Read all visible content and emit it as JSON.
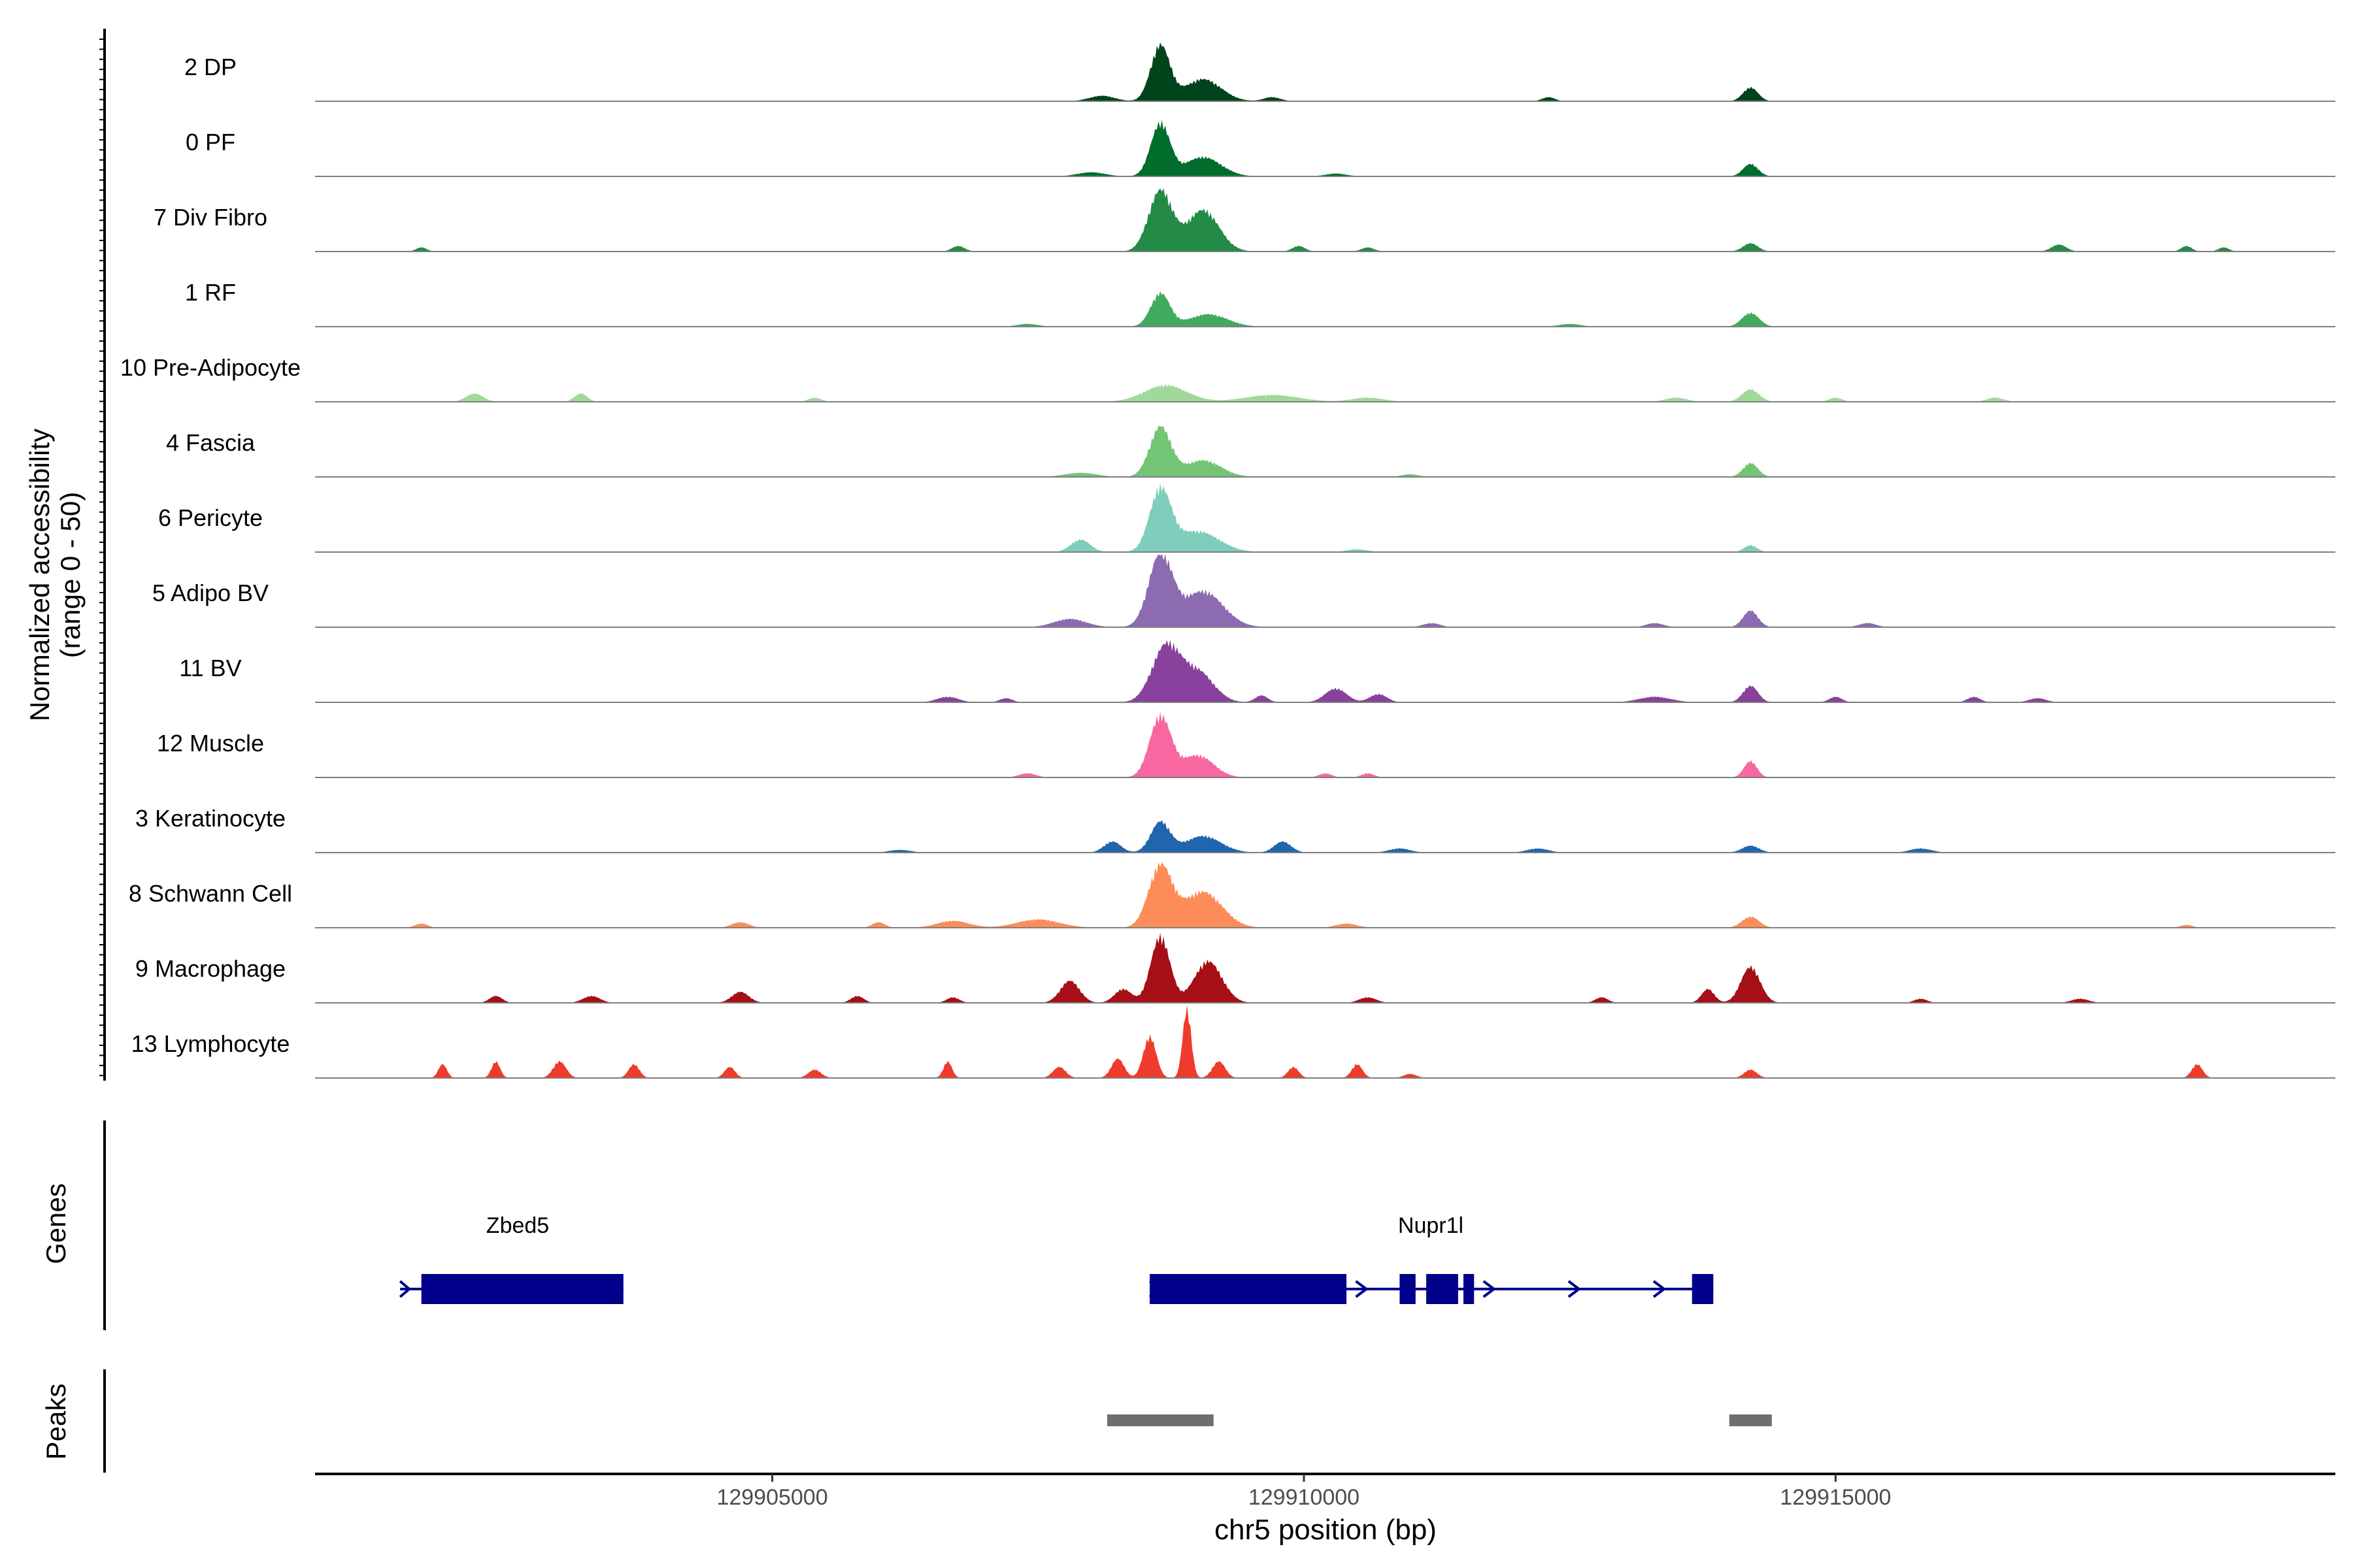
{
  "chart_data": {
    "type": "area",
    "subtype": "coverage-tracks",
    "xlabel": "chr5 position (bp)",
    "ylabel_line1": "Normalized accessibility",
    "ylabel_line2": "(range 0 - 50)",
    "ylim": [
      0,
      50
    ],
    "xlim": [
      129900700,
      129919700
    ],
    "xticks": [
      129905000,
      129910000,
      129915000
    ],
    "xtick_labels": [
      "129905000",
      "129910000",
      "129915000"
    ],
    "grid": false,
    "track_label_genes": "Genes",
    "track_label_peaks": "Peaks",
    "series": [
      {
        "name": "2 DP",
        "color": "#00441b",
        "peaks": [
          [
            129908650,
            40,
            90
          ],
          [
            129909050,
            16,
            170
          ],
          [
            129914200,
            10,
            70
          ],
          [
            129908100,
            4,
            120
          ],
          [
            129912300,
            3,
            60
          ],
          [
            129909700,
            3,
            80
          ]
        ]
      },
      {
        "name": "0 PF",
        "color": "#006d2c",
        "peaks": [
          [
            129908650,
            38,
            90
          ],
          [
            129909050,
            14,
            170
          ],
          [
            129914200,
            9,
            70
          ],
          [
            129908000,
            3,
            130
          ],
          [
            129910300,
            2,
            100
          ]
        ]
      },
      {
        "name": "7 Div Fibro",
        "color": "#238b45",
        "peaks": [
          [
            129908650,
            44,
            110
          ],
          [
            129909050,
            30,
            150
          ],
          [
            129914200,
            6,
            70
          ],
          [
            129901700,
            3,
            50
          ],
          [
            129906750,
            4,
            60
          ],
          [
            129909950,
            4,
            60
          ],
          [
            129910600,
            3,
            60
          ],
          [
            129917100,
            5,
            70
          ],
          [
            129918300,
            4,
            50
          ],
          [
            129918650,
            3,
            50
          ]
        ]
      },
      {
        "name": "1 RF",
        "color": "#41ab5d",
        "peaks": [
          [
            129908650,
            24,
            90
          ],
          [
            129909100,
            9,
            180
          ],
          [
            129914200,
            10,
            80
          ],
          [
            129907400,
            2,
            100
          ],
          [
            129912500,
            2,
            100
          ]
        ]
      },
      {
        "name": "10 Pre-Adipocyte",
        "color": "#a1d99b",
        "peaks": [
          [
            129908700,
            12,
            200
          ],
          [
            129902200,
            6,
            80
          ],
          [
            129903200,
            6,
            60
          ],
          [
            129914200,
            9,
            80
          ],
          [
            129909700,
            5,
            250
          ],
          [
            129910600,
            3,
            150
          ],
          [
            129913500,
            3,
            100
          ],
          [
            129915000,
            3,
            60
          ],
          [
            129916500,
            3,
            80
          ],
          [
            129905400,
            3,
            60
          ]
        ]
      },
      {
        "name": "4 Fascia",
        "color": "#74c476",
        "peaks": [
          [
            129908650,
            36,
            100
          ],
          [
            129909050,
            12,
            170
          ],
          [
            129914200,
            10,
            70
          ],
          [
            129907900,
            3,
            150
          ],
          [
            129911000,
            2,
            80
          ]
        ]
      },
      {
        "name": "6 Pericyte",
        "color": "#7fcdbb",
        "peaks": [
          [
            129908650,
            44,
            100
          ],
          [
            129909000,
            15,
            200
          ],
          [
            129907900,
            9,
            90
          ],
          [
            129914200,
            5,
            60
          ],
          [
            129910500,
            2,
            100
          ]
        ]
      },
      {
        "name": "5 Adipo BV",
        "color": "#8c6bb1",
        "peaks": [
          [
            129908650,
            52,
            110
          ],
          [
            129909050,
            26,
            190
          ],
          [
            129914200,
            12,
            70
          ],
          [
            129907800,
            6,
            150
          ],
          [
            129911200,
            3,
            80
          ],
          [
            129915300,
            3,
            80
          ],
          [
            129913300,
            3,
            80
          ]
        ]
      },
      {
        "name": "11 BV",
        "color": "#88419d",
        "peaks": [
          [
            129908700,
            40,
            130
          ],
          [
            129909000,
            22,
            150
          ],
          [
            129914200,
            12,
            70
          ],
          [
            129906650,
            4,
            100
          ],
          [
            129907200,
            3,
            60
          ],
          [
            129910300,
            10,
            100
          ],
          [
            129910700,
            6,
            80
          ],
          [
            129913300,
            4,
            150
          ],
          [
            129915000,
            4,
            60
          ],
          [
            129916300,
            4,
            60
          ],
          [
            129916900,
            3,
            80
          ],
          [
            129909600,
            5,
            60
          ]
        ]
      },
      {
        "name": "12 Muscle",
        "color": "#f768a1",
        "peaks": [
          [
            129908650,
            44,
            100
          ],
          [
            129909000,
            16,
            150
          ],
          [
            129914200,
            12,
            60
          ],
          [
            129907400,
            3,
            80
          ],
          [
            129910200,
            3,
            60
          ],
          [
            129910600,
            3,
            60
          ]
        ]
      },
      {
        "name": "3 Keratinocyte",
        "color": "#2166ac",
        "peaks": [
          [
            129908650,
            22,
            90
          ],
          [
            129909050,
            12,
            170
          ],
          [
            129908200,
            8,
            80
          ],
          [
            129909800,
            8,
            80
          ],
          [
            129914200,
            5,
            80
          ],
          [
            129910900,
            3,
            100
          ],
          [
            129912200,
            3,
            100
          ],
          [
            129915800,
            3,
            100
          ],
          [
            129906200,
            2,
            100
          ]
        ]
      },
      {
        "name": "8 Schwann Cell",
        "color": "#fc8d59",
        "peaks": [
          [
            129908650,
            44,
            110
          ],
          [
            129909050,
            26,
            180
          ],
          [
            129907500,
            6,
            200
          ],
          [
            129906700,
            5,
            150
          ],
          [
            129914200,
            8,
            80
          ],
          [
            129901700,
            3,
            60
          ],
          [
            129904700,
            4,
            80
          ],
          [
            129906000,
            4,
            60
          ],
          [
            129910400,
            3,
            100
          ],
          [
            129918300,
            2,
            60
          ]
        ]
      },
      {
        "name": "9 Macrophage",
        "color": "#a50f15",
        "peaks": [
          [
            129908650,
            48,
            90
          ],
          [
            129909100,
            30,
            130
          ],
          [
            129914200,
            26,
            90
          ],
          [
            129907800,
            16,
            90
          ],
          [
            129908300,
            10,
            80
          ],
          [
            129913800,
            10,
            60
          ],
          [
            129904700,
            8,
            80
          ],
          [
            129903300,
            5,
            80
          ],
          [
            129902400,
            5,
            60
          ],
          [
            129905800,
            5,
            60
          ],
          [
            129906700,
            4,
            60
          ],
          [
            129910600,
            4,
            80
          ],
          [
            129912800,
            4,
            60
          ],
          [
            129915800,
            3,
            60
          ],
          [
            129917300,
            3,
            80
          ]
        ]
      },
      {
        "name": "13 Lymphocyte",
        "color": "#ef3b2c",
        "peaks": [
          [
            129908900,
            50,
            40
          ],
          [
            129908550,
            30,
            60
          ],
          [
            129908250,
            14,
            60
          ],
          [
            129909200,
            12,
            60
          ],
          [
            129901900,
            10,
            40
          ],
          [
            129902400,
            12,
            40
          ],
          [
            129903000,
            12,
            60
          ],
          [
            129903700,
            10,
            50
          ],
          [
            129904600,
            8,
            50
          ],
          [
            129905400,
            6,
            60
          ],
          [
            129906650,
            12,
            40
          ],
          [
            129907700,
            8,
            60
          ],
          [
            129909900,
            8,
            50
          ],
          [
            129910500,
            10,
            50
          ],
          [
            129914200,
            6,
            60
          ],
          [
            129918400,
            10,
            50
          ],
          [
            129911000,
            3,
            60
          ]
        ]
      }
    ],
    "genes": [
      {
        "name": "Zbed5",
        "strand": "+",
        "start": 129901500,
        "end": 129903600,
        "exons": [
          [
            129901700,
            129903600
          ]
        ]
      },
      {
        "name": "Nupr1l",
        "strand": "+",
        "start": 129908550,
        "end": 129913850,
        "exons": [
          [
            129908550,
            129910400
          ],
          [
            129910900,
            129911050
          ],
          [
            129911150,
            129911450
          ],
          [
            129911500,
            129911600
          ],
          [
            129913650,
            129913850
          ]
        ],
        "arrows": [
          129910550,
          129911750,
          129912550,
          129913350
        ]
      }
    ],
    "peaks": [
      {
        "start": 129908150,
        "end": 129909150
      },
      {
        "start": 129914000,
        "end": 129914400
      }
    ]
  }
}
